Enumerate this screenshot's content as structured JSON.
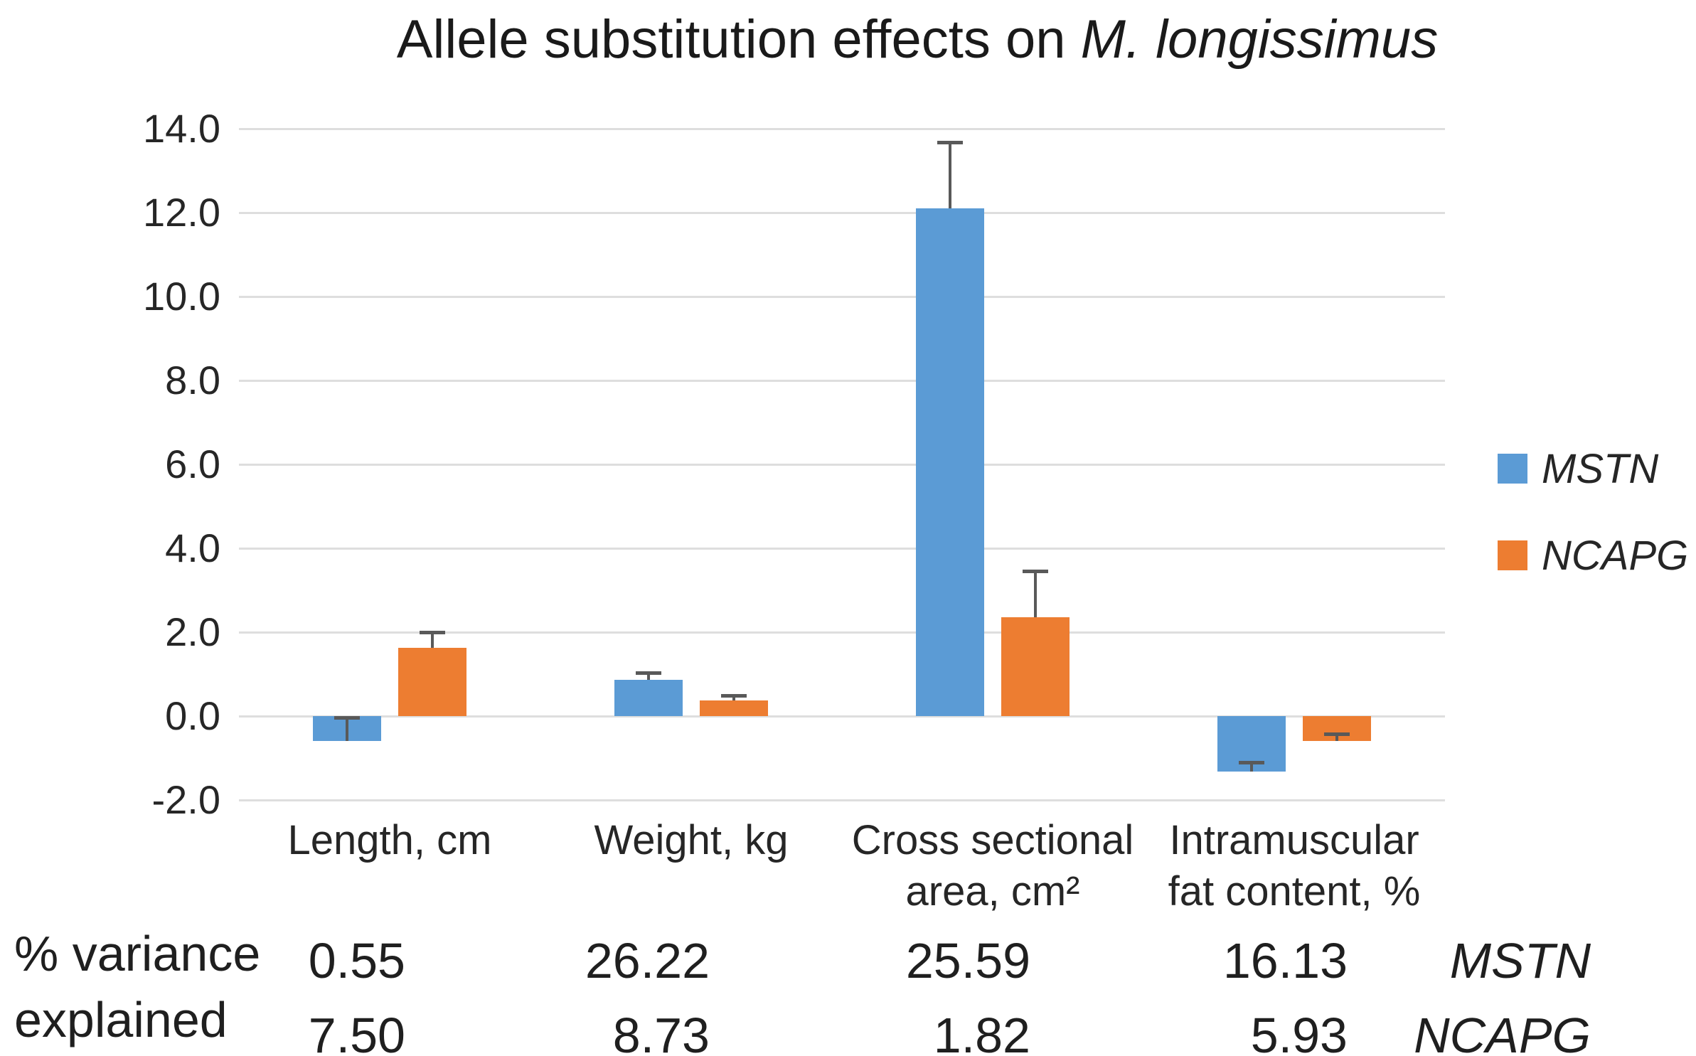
{
  "title": {
    "text_normal": "Allele substitution effects on ",
    "text_italic": "M. longissimus"
  },
  "chart_data": {
    "type": "bar",
    "title": "Allele substitution effects on M. longissimus",
    "xlabel": "",
    "ylabel": "",
    "ylim": [
      -2.0,
      14.0
    ],
    "ytick_step": 2.0,
    "yticks": [
      "14.0",
      "12.0",
      "10.0",
      "8.0",
      "6.0",
      "4.0",
      "2.0",
      "0.0",
      "-2.0"
    ],
    "grid": true,
    "legend_position": "right",
    "categories": [
      "Length, cm",
      "Weight, kg",
      "Cross sectional area, cm²",
      "Intramuscular fat content, %"
    ],
    "category_label_lines": [
      [
        "Length, cm"
      ],
      [
        "Weight, kg"
      ],
      [
        "Cross sectional",
        "area, cm²"
      ],
      [
        "Intramuscular",
        "fat content, %"
      ]
    ],
    "series": [
      {
        "name": "MSTN",
        "color": "#5B9BD5",
        "values": [
          -0.6,
          0.87,
          12.1,
          -1.32
        ],
        "error_whisker_tops": [
          -0.04,
          1.04,
          13.68,
          -1.1
        ]
      },
      {
        "name": "NCAPG",
        "color": "#ED7D31",
        "values": [
          1.62,
          0.37,
          2.35,
          -0.6
        ],
        "error_whisker_tops": [
          2.0,
          0.5,
          3.45,
          -0.42
        ]
      }
    ]
  },
  "variance_table": {
    "row_header_line1": "% variance",
    "row_header_line2": "explained",
    "rows": [
      {
        "series": "MSTN",
        "values": [
          "0.55",
          "26.22",
          "25.59",
          "16.13"
        ]
      },
      {
        "series": "NCAPG",
        "values": [
          "7.50",
          "8.73",
          "1.82",
          "5.93"
        ]
      }
    ]
  },
  "colors": {
    "mstn_blue": "#5B9BD5",
    "ncapg_orange": "#ED7D31",
    "gridline": "#dedede",
    "error_bar": "#595959",
    "text": "#262626"
  }
}
